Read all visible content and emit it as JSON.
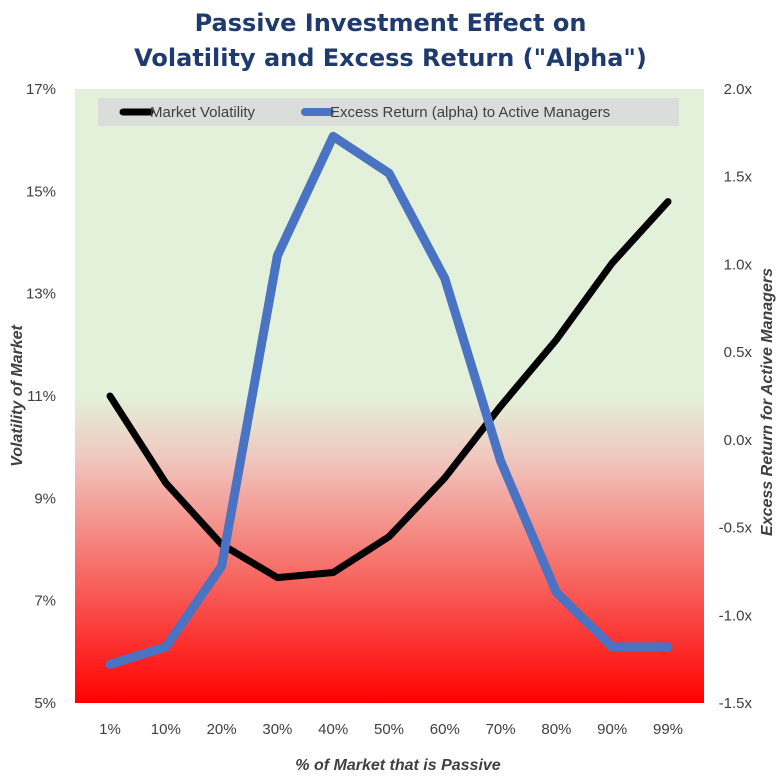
{
  "chart_data": {
    "type": "line",
    "title_line1": "Passive Investment Effect on",
    "title_line2": "Volatility and Excess Return (\"Alpha\")",
    "xlabel": "% of Market that is Passive",
    "ylabel_left": "Volatility of Market",
    "ylabel_right": "Excess Return for Active Managers",
    "categories": [
      "1%",
      "10%",
      "20%",
      "30%",
      "40%",
      "50%",
      "60%",
      "70%",
      "80%",
      "90%",
      "99%"
    ],
    "y_left": {
      "lim": [
        5,
        17
      ],
      "ticks": [
        5,
        7,
        9,
        11,
        13,
        15,
        17
      ],
      "tick_labels": [
        "5%",
        "7%",
        "9%",
        "11%",
        "13%",
        "15%",
        "17%"
      ]
    },
    "y_right": {
      "lim": [
        -1.5,
        2.0
      ],
      "ticks": [
        -1.5,
        -1.0,
        -0.5,
        0.0,
        0.5,
        1.0,
        1.5,
        2.0
      ],
      "tick_labels": [
        "-1.5x",
        "-1.0x",
        "-0.5x",
        "0.0x",
        "0.5x",
        "1.0x",
        "1.5x",
        "2.0x"
      ]
    },
    "series": [
      {
        "name": "Market Volatility",
        "axis": "left",
        "color": "#000000",
        "values": [
          11.0,
          9.3,
          8.1,
          7.45,
          7.55,
          8.25,
          9.4,
          10.8,
          12.1,
          13.6,
          14.8
        ]
      },
      {
        "name": "Excess Return (alpha) to Active Managers",
        "axis": "right",
        "color": "#4a73c4",
        "values": [
          -1.28,
          -1.18,
          -0.72,
          1.05,
          1.73,
          1.52,
          0.92,
          -0.12,
          -0.87,
          -1.18,
          -1.18
        ]
      }
    ],
    "legend_position": "top",
    "grid": false,
    "background": {
      "top_color": "#e3f1da",
      "bottom_color": "#ff0000"
    }
  }
}
